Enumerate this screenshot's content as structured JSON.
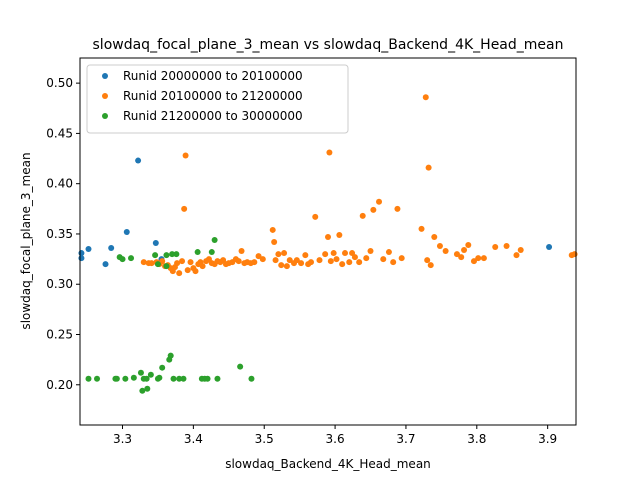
{
  "chart_data": {
    "type": "scatter",
    "title": "slowdaq_focal_plane_3_mean vs slowdaq_Backend_4K_Head_mean",
    "xlabel": "slowdaq_Backend_4K_Head_mean",
    "ylabel": "slowdaq_focal_plane_3_mean",
    "xlim": [
      3.24,
      3.94
    ],
    "ylim": [
      0.16,
      0.525
    ],
    "xticks": [
      "3.3",
      "3.4",
      "3.5",
      "3.6",
      "3.7",
      "3.8",
      "3.9"
    ],
    "yticks": [
      "0.20",
      "0.25",
      "0.30",
      "0.35",
      "0.40",
      "0.45",
      "0.50"
    ],
    "grid": false,
    "legend_position": "top-left",
    "series": [
      {
        "name": "Runid 20000000 to 20100000",
        "color": "#1f77b4",
        "points": [
          [
            3.242,
            0.331
          ],
          [
            3.242,
            0.326
          ],
          [
            3.252,
            0.335
          ],
          [
            3.276,
            0.32
          ],
          [
            3.284,
            0.336
          ],
          [
            3.306,
            0.352
          ],
          [
            3.322,
            0.423
          ],
          [
            3.347,
            0.341
          ],
          [
            3.355,
            0.325
          ],
          [
            3.902,
            0.337
          ]
        ]
      },
      {
        "name": "Runid 20100000 to 21200000",
        "color": "#ff7f0e",
        "points": [
          [
            3.33,
            0.322
          ],
          [
            3.337,
            0.321
          ],
          [
            3.341,
            0.321
          ],
          [
            3.348,
            0.322
          ],
          [
            3.352,
            0.32
          ],
          [
            3.356,
            0.323
          ],
          [
            3.36,
            0.318
          ],
          [
            3.364,
            0.319
          ],
          [
            3.368,
            0.316
          ],
          [
            3.371,
            0.313
          ],
          [
            3.374,
            0.317
          ],
          [
            3.377,
            0.321
          ],
          [
            3.38,
            0.311
          ],
          [
            3.384,
            0.323
          ],
          [
            3.387,
            0.375
          ],
          [
            3.389,
            0.428
          ],
          [
            3.392,
            0.314
          ],
          [
            3.396,
            0.322
          ],
          [
            3.4,
            0.316
          ],
          [
            3.403,
            0.313
          ],
          [
            3.407,
            0.32
          ],
          [
            3.41,
            0.322
          ],
          [
            3.413,
            0.318
          ],
          [
            3.418,
            0.323
          ],
          [
            3.422,
            0.325
          ],
          [
            3.426,
            0.321
          ],
          [
            3.43,
            0.32
          ],
          [
            3.434,
            0.323
          ],
          [
            3.438,
            0.322
          ],
          [
            3.442,
            0.324
          ],
          [
            3.446,
            0.32
          ],
          [
            3.45,
            0.321
          ],
          [
            3.455,
            0.322
          ],
          [
            3.46,
            0.325
          ],
          [
            3.464,
            0.323
          ],
          [
            3.468,
            0.333
          ],
          [
            3.472,
            0.321
          ],
          [
            3.476,
            0.322
          ],
          [
            3.481,
            0.321
          ],
          [
            3.486,
            0.322
          ],
          [
            3.492,
            0.328
          ],
          [
            3.498,
            0.325
          ],
          [
            3.512,
            0.354
          ],
          [
            3.514,
            0.342
          ],
          [
            3.516,
            0.324
          ],
          [
            3.52,
            0.33
          ],
          [
            3.524,
            0.319
          ],
          [
            3.528,
            0.331
          ],
          [
            3.532,
            0.318
          ],
          [
            3.536,
            0.324
          ],
          [
            3.542,
            0.321
          ],
          [
            3.546,
            0.324
          ],
          [
            3.552,
            0.321
          ],
          [
            3.558,
            0.329
          ],
          [
            3.562,
            0.32
          ],
          [
            3.566,
            0.322
          ],
          [
            3.572,
            0.367
          ],
          [
            3.578,
            0.324
          ],
          [
            3.586,
            0.33
          ],
          [
            3.59,
            0.347
          ],
          [
            3.592,
            0.431
          ],
          [
            3.594,
            0.323
          ],
          [
            3.598,
            0.331
          ],
          [
            3.602,
            0.325
          ],
          [
            3.606,
            0.349
          ],
          [
            3.61,
            0.32
          ],
          [
            3.614,
            0.331
          ],
          [
            3.62,
            0.322
          ],
          [
            3.624,
            0.331
          ],
          [
            3.628,
            0.327
          ],
          [
            3.634,
            0.322
          ],
          [
            3.639,
            0.368
          ],
          [
            3.644,
            0.326
          ],
          [
            3.65,
            0.333
          ],
          [
            3.654,
            0.374
          ],
          [
            3.662,
            0.382
          ],
          [
            3.668,
            0.325
          ],
          [
            3.676,
            0.332
          ],
          [
            3.682,
            0.322
          ],
          [
            3.688,
            0.375
          ],
          [
            3.694,
            0.326
          ],
          [
            3.722,
            0.355
          ],
          [
            3.728,
            0.486
          ],
          [
            3.73,
            0.324
          ],
          [
            3.732,
            0.416
          ],
          [
            3.735,
            0.319
          ],
          [
            3.74,
            0.347
          ],
          [
            3.748,
            0.338
          ],
          [
            3.756,
            0.333
          ],
          [
            3.772,
            0.33
          ],
          [
            3.778,
            0.327
          ],
          [
            3.782,
            0.334
          ],
          [
            3.788,
            0.339
          ],
          [
            3.796,
            0.323
          ],
          [
            3.802,
            0.326
          ],
          [
            3.81,
            0.326
          ],
          [
            3.826,
            0.337
          ],
          [
            3.842,
            0.338
          ],
          [
            3.856,
            0.329
          ],
          [
            3.862,
            0.334
          ],
          [
            3.934,
            0.329
          ],
          [
            3.938,
            0.33
          ]
        ]
      },
      {
        "name": "Runid 21200000 to 30000000",
        "color": "#2ca02c",
        "points": [
          [
            3.252,
            0.206
          ],
          [
            3.264,
            0.206
          ],
          [
            3.29,
            0.206
          ],
          [
            3.292,
            0.206
          ],
          [
            3.296,
            0.327
          ],
          [
            3.3,
            0.325
          ],
          [
            3.304,
            0.206
          ],
          [
            3.312,
            0.326
          ],
          [
            3.316,
            0.207
          ],
          [
            3.326,
            0.212
          ],
          [
            3.328,
            0.194
          ],
          [
            3.33,
            0.206
          ],
          [
            3.334,
            0.206
          ],
          [
            3.34,
            0.21
          ],
          [
            3.346,
            0.329
          ],
          [
            3.35,
            0.206
          ],
          [
            3.352,
            0.207
          ],
          [
            3.356,
            0.217
          ],
          [
            3.362,
            0.329
          ],
          [
            3.366,
            0.225
          ],
          [
            3.368,
            0.229
          ],
          [
            3.37,
            0.33
          ],
          [
            3.372,
            0.206
          ],
          [
            3.376,
            0.33
          ],
          [
            3.38,
            0.206
          ],
          [
            3.386,
            0.206
          ],
          [
            3.406,
            0.332
          ],
          [
            3.412,
            0.206
          ],
          [
            3.416,
            0.206
          ],
          [
            3.42,
            0.206
          ],
          [
            3.426,
            0.332
          ],
          [
            3.43,
            0.344
          ],
          [
            3.434,
            0.206
          ],
          [
            3.466,
            0.218
          ],
          [
            3.482,
            0.206
          ],
          [
            3.335,
            0.196
          ],
          [
            3.35,
            0.32
          ],
          [
            3.362,
            0.318
          ]
        ]
      }
    ]
  }
}
